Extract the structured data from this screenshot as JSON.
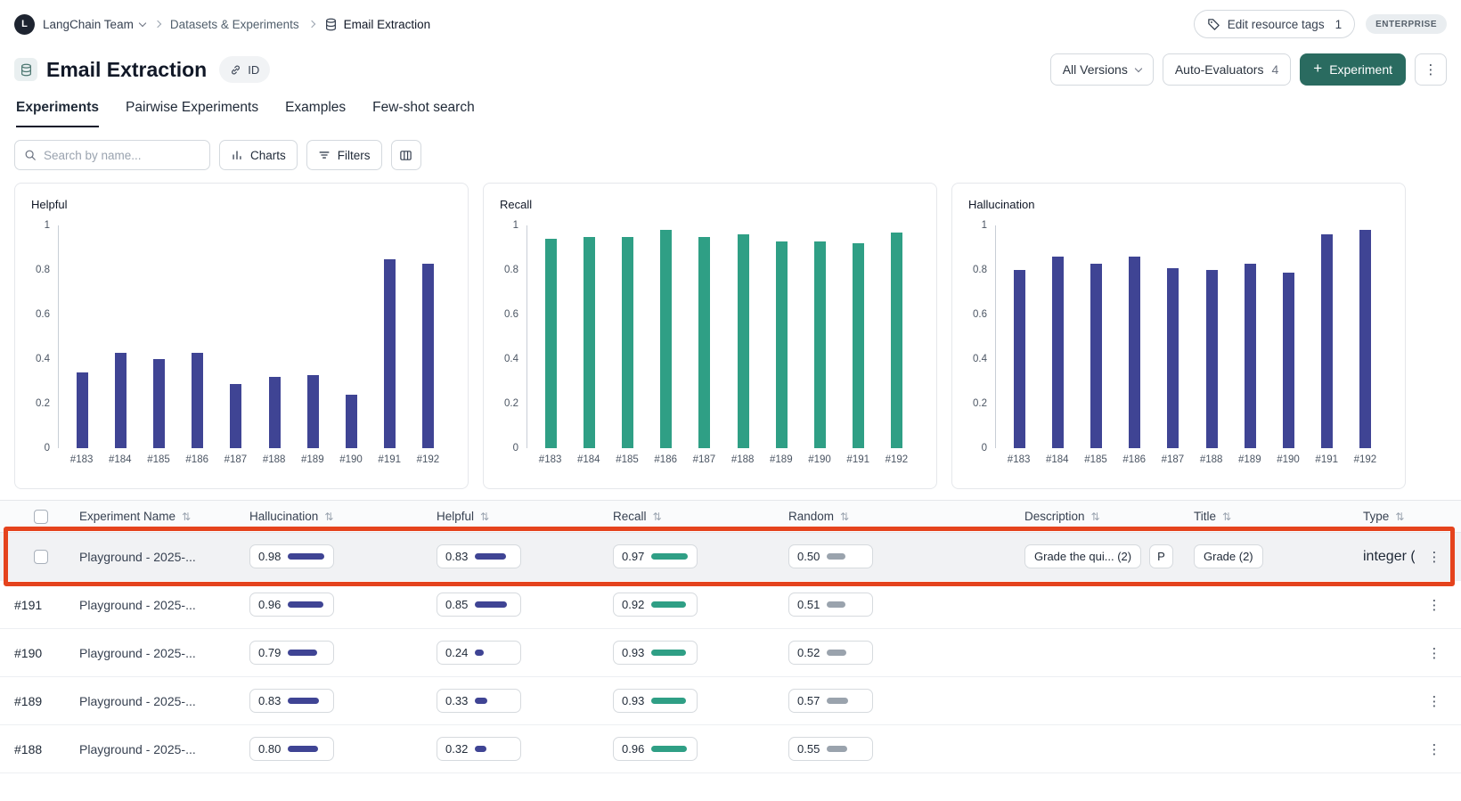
{
  "colors": {
    "navy_bar": "#3f4494",
    "teal_bar": "#2f9f85",
    "random_bar": "#9aa3ad",
    "highlight_red": "#e5431d",
    "primary_button": "#2a6b60",
    "metric_colors": {
      "hallucination": "#3f4494",
      "helpful": "#3f4494",
      "recall": "#2f9f85",
      "random": "#9aa3ad"
    }
  },
  "topbar": {
    "team_initial": "L",
    "team_name": "LangChain Team",
    "breadcrumb_datasets": "Datasets & Experiments",
    "breadcrumb_current": "Email Extraction",
    "edit_resource_tags_label": "Edit resource tags",
    "edit_resource_tags_count": "1",
    "enterprise_badge": "ENTERPRISE"
  },
  "header": {
    "title": "Email Extraction",
    "id_button_label": "ID",
    "all_versions_label": "All Versions",
    "auto_evaluators_label": "Auto-Evaluators",
    "auto_evaluators_count": "4",
    "experiment_button_label": "Experiment"
  },
  "tabs": [
    {
      "label": "Experiments",
      "active": true
    },
    {
      "label": "Pairwise Experiments",
      "active": false
    },
    {
      "label": "Examples",
      "active": false
    },
    {
      "label": "Few-shot search",
      "active": false
    }
  ],
  "toolbar": {
    "search_placeholder": "Search by name...",
    "charts_button": "Charts",
    "filters_button": "Filters"
  },
  "chart_data": [
    {
      "type": "bar",
      "title": "Helpful",
      "categories": [
        "#183",
        "#184",
        "#185",
        "#186",
        "#187",
        "#188",
        "#189",
        "#190",
        "#191",
        "#192"
      ],
      "values": [
        0.34,
        0.43,
        0.4,
        0.43,
        0.29,
        0.32,
        0.33,
        0.24,
        0.85,
        0.83
      ],
      "color": "#3f4494",
      "ylim": [
        0,
        1
      ],
      "yticks": [
        0,
        0.2,
        0.4,
        0.6,
        0.8,
        1
      ],
      "grid": false,
      "legend": false
    },
    {
      "type": "bar",
      "title": "Recall",
      "categories": [
        "#183",
        "#184",
        "#185",
        "#186",
        "#187",
        "#188",
        "#189",
        "#190",
        "#191",
        "#192"
      ],
      "values": [
        0.94,
        0.95,
        0.95,
        0.98,
        0.95,
        0.96,
        0.93,
        0.93,
        0.92,
        0.97
      ],
      "color": "#2f9f85",
      "ylim": [
        0,
        1
      ],
      "yticks": [
        0,
        0.2,
        0.4,
        0.6,
        0.8,
        1
      ],
      "grid": false,
      "legend": false
    },
    {
      "type": "bar",
      "title": "Hallucination",
      "categories": [
        "#183",
        "#184",
        "#185",
        "#186",
        "#187",
        "#188",
        "#189",
        "#190",
        "#191",
        "#192"
      ],
      "values": [
        0.8,
        0.86,
        0.83,
        0.86,
        0.81,
        0.8,
        0.83,
        0.79,
        0.96,
        0.98
      ],
      "color": "#3f4494",
      "ylim": [
        0,
        1
      ],
      "yticks": [
        0,
        0.2,
        0.4,
        0.6,
        0.8,
        1
      ],
      "grid": false,
      "legend": false
    }
  ],
  "table": {
    "columns": [
      {
        "label": "Experiment Name"
      },
      {
        "label": "Hallucination"
      },
      {
        "label": "Helpful"
      },
      {
        "label": "Recall"
      },
      {
        "label": "Random"
      },
      {
        "label": "Description"
      },
      {
        "label": "Title"
      },
      {
        "label": "Type"
      }
    ],
    "rows": [
      {
        "id": "",
        "has_checkbox": true,
        "highlighted": true,
        "name": "Playground - 2025-...",
        "hallucination": "0.98",
        "helpful": "0.83",
        "recall": "0.97",
        "random": "0.50",
        "description": "Grade the qui... (2)",
        "description_extra": "P",
        "title": "Grade (2)",
        "type": "integer ("
      },
      {
        "id": "#191",
        "name": "Playground - 2025-...",
        "hallucination": "0.96",
        "helpful": "0.85",
        "recall": "0.92",
        "random": "0.51"
      },
      {
        "id": "#190",
        "name": "Playground - 2025-...",
        "hallucination": "0.79",
        "helpful": "0.24",
        "recall": "0.93",
        "random": "0.52"
      },
      {
        "id": "#189",
        "name": "Playground - 2025-...",
        "hallucination": "0.83",
        "helpful": "0.33",
        "recall": "0.93",
        "random": "0.57"
      },
      {
        "id": "#188",
        "name": "Playground - 2025-...",
        "hallucination": "0.80",
        "helpful": "0.32",
        "recall": "0.96",
        "random": "0.55"
      }
    ]
  }
}
